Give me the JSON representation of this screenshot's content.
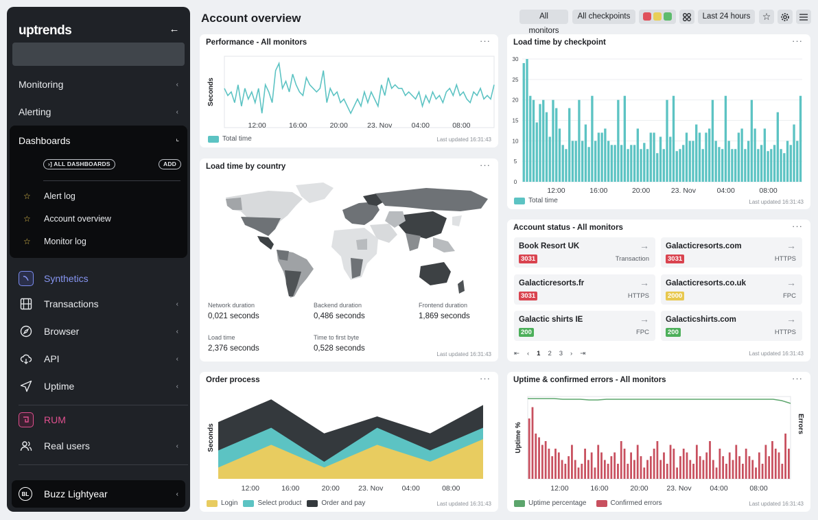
{
  "sidebar": {
    "logo": "uptrends",
    "search_placeholder": "",
    "top_items": [
      {
        "label": "Monitoring"
      },
      {
        "label": "Alerting"
      }
    ],
    "dashboards": {
      "title": "Dashboards",
      "all_dashboards": "›] ALL DASHBOARDS",
      "add": "ADD",
      "favorites": [
        "Alert log",
        "Account overview",
        "Monitor log"
      ]
    },
    "synthetics": {
      "label": "Synthetics",
      "color": "#7b8cf0",
      "items": [
        {
          "label": "Transactions",
          "icon": "film-icon"
        },
        {
          "label": "Browser",
          "icon": "compass-icon"
        },
        {
          "label": "API",
          "icon": "cloud-icon"
        },
        {
          "label": "Uptime",
          "icon": "send-icon"
        }
      ]
    },
    "rum": {
      "label": "RUM",
      "color": "#e0508f",
      "items": [
        {
          "label": "Real users",
          "icon": "users-icon"
        }
      ]
    },
    "user": {
      "initials": "BL",
      "name": "Buzz Lightyear"
    }
  },
  "header": {
    "title": "Account overview",
    "all_monitors": "All monitors",
    "all_checkpoints": "All checkpoints",
    "status_colors": [
      "#e0525c",
      "#e8cf58",
      "#5dbb6c"
    ],
    "time_range": "Last 24 hours"
  },
  "panels": {
    "performance": {
      "title": "Performance - All monitors",
      "updated": "Last updated 16:31:43",
      "legend": [
        "Total time"
      ]
    },
    "checkpoint": {
      "title": "Load time by checkpoint",
      "updated": "Last updated 16:31:43",
      "legend": [
        "Total time"
      ]
    },
    "country": {
      "title": "Load time by country",
      "updated": "Last updated 16:31:43",
      "metrics": [
        {
          "label": "Network duration",
          "value": "0,021 seconds"
        },
        {
          "label": "Backend duration",
          "value": "0,486 seconds"
        },
        {
          "label": "Frontend duration",
          "value": "1,869 seconds"
        },
        {
          "label": "Load time",
          "value": "2,376 seconds"
        },
        {
          "label": "Time to first byte",
          "value": "0,528 seconds"
        }
      ]
    },
    "account": {
      "title": "Account status - All monitors",
      "updated": "Last updated 16:31:43",
      "cards": [
        {
          "name": "Book Resort UK",
          "code": "3031",
          "type": "Transaction",
          "color": "#d9434f"
        },
        {
          "name": "Galacticresorts.com",
          "code": "3031",
          "type": "HTTPS",
          "color": "#d9434f"
        },
        {
          "name": "Galacticresorts.fr",
          "code": "3031",
          "type": "HTTPS",
          "color": "#d9434f"
        },
        {
          "name": "Galacticresorts.co.uk",
          "code": "2000",
          "type": "FPC",
          "color": "#e8c84f"
        },
        {
          "name": "Galactic shirts IE",
          "code": "200",
          "type": "FPC",
          "color": "#4caf5a"
        },
        {
          "name": "Galacticshirts.com",
          "code": "200",
          "type": "HTTPS",
          "color": "#4caf5a"
        }
      ],
      "pager": [
        "⇤",
        "‹",
        "1",
        "2",
        "3",
        "›",
        "⇥"
      ]
    },
    "order": {
      "title": "Order process",
      "updated": "Last updated 16:31:43",
      "legend": [
        "Login",
        "Select product",
        "Order and pay"
      ]
    },
    "uptime": {
      "title": "Uptime & confirmed errors - All monitors",
      "updated": "Last updated 16:31:43",
      "legend": [
        "Uptime percentage",
        "Confirmed errors"
      ]
    }
  },
  "chart_data": [
    {
      "id": "performance",
      "type": "line",
      "title": "Performance - All monitors",
      "ylabel": "Seconds",
      "x_ticks": [
        "12:00",
        "16:00",
        "20:00",
        "23. Nov",
        "04:00",
        "08:00"
      ],
      "series": [
        {
          "name": "Total time",
          "color": "#5cc3c3",
          "values": [
            0.55,
            0.45,
            0.5,
            0.35,
            0.6,
            0.3,
            0.55,
            0.4,
            0.5,
            0.35,
            0.55,
            0.2,
            0.6,
            0.5,
            0.35,
            0.8,
            0.9,
            0.55,
            0.65,
            0.5,
            0.75,
            0.6,
            0.5,
            0.45,
            0.7,
            0.6,
            0.55,
            0.5,
            0.55,
            0.8,
            0.35,
            0.55,
            0.45,
            0.5,
            0.35,
            0.4,
            0.3,
            0.2,
            0.3,
            0.4,
            0.3,
            0.5,
            0.35,
            0.5,
            0.4,
            0.3,
            0.6,
            0.45,
            0.7,
            0.55,
            0.6,
            0.55,
            0.55,
            0.45,
            0.5,
            0.45,
            0.4,
            0.5,
            0.3,
            0.45,
            0.35,
            0.5,
            0.4,
            0.45,
            0.35,
            0.5,
            0.55,
            0.45,
            0.6,
            0.45,
            0.5,
            0.4,
            0.35,
            0.5,
            0.45,
            0.55,
            0.4,
            0.45,
            0.4,
            0.6
          ]
        }
      ]
    },
    {
      "id": "checkpoint",
      "type": "bar",
      "title": "Load time by checkpoint",
      "ylim": [
        0,
        30
      ],
      "y_ticks": [
        0,
        5,
        10,
        15,
        20,
        25,
        30
      ],
      "x_ticks": [
        "12:00",
        "16:00",
        "20:00",
        "23. Nov",
        "04:00",
        "08:00"
      ],
      "series": [
        {
          "name": "Total time",
          "color": "#5cc3c3",
          "values": [
            29,
            30,
            21,
            20,
            14.5,
            19,
            20,
            17,
            11,
            20,
            18,
            13,
            9,
            8,
            18,
            10,
            10,
            20,
            10,
            14,
            8.5,
            21,
            10,
            12,
            12,
            13,
            10,
            9,
            9,
            20,
            9,
            21,
            8,
            9,
            9,
            13,
            8,
            9.5,
            8,
            12,
            12,
            7,
            11,
            8,
            20,
            11,
            21,
            7.5,
            8,
            9,
            12,
            10,
            10,
            14,
            12,
            8,
            12,
            13,
            20,
            10,
            8.5,
            8,
            21,
            10,
            8,
            8,
            12,
            13,
            8,
            10,
            20,
            13,
            8,
            9,
            13,
            7.5,
            8,
            9,
            17,
            8,
            7,
            10,
            9,
            14,
            10,
            21
          ]
        }
      ]
    },
    {
      "id": "order",
      "type": "area",
      "title": "Order process",
      "ylabel": "Seconds",
      "x_ticks": [
        "12:00",
        "16:00",
        "20:00",
        "23. Nov",
        "04:00",
        "08:00"
      ],
      "series": [
        {
          "name": "Login",
          "color": "#e8cc60",
          "values": [
            0.2,
            0.6,
            0.2,
            0.6,
            0.3,
            0.7
          ]
        },
        {
          "name": "Select product",
          "color": "#5cc3c3",
          "values": [
            0.5,
            0.9,
            0.3,
            0.9,
            0.5,
            0.9
          ]
        },
        {
          "name": "Order and pay",
          "color": "#34393d",
          "values": [
            1.0,
            1.4,
            0.8,
            1.1,
            0.8,
            1.3
          ]
        }
      ]
    },
    {
      "id": "uptime",
      "type": "bar",
      "title": "Uptime & confirmed errors - All monitors",
      "ylabel": "Uptime %",
      "y2label": "Errors",
      "x_ticks": [
        "12:00",
        "16:00",
        "20:00",
        "23. Nov",
        "04:00",
        "08:00"
      ],
      "series": [
        {
          "name": "Uptime percentage",
          "type": "line",
          "color": "#5ca56c",
          "values": [
            99.9,
            99.9,
            99.9,
            99.9,
            99.8,
            99.8,
            99.8,
            99.7,
            99.7,
            99.8,
            99.8,
            99.8,
            99.8,
            99.8,
            99.8,
            99.8,
            99.8,
            99.8,
            99.8,
            99.8,
            99.8,
            99.8,
            99.8,
            99.8,
            99.8,
            99.8,
            99.8,
            99.8,
            99.8,
            99.6,
            99.2
          ]
        },
        {
          "name": "Confirmed errors",
          "type": "bar",
          "color": "#c8505f",
          "values": [
            0.8,
            0.95,
            0.6,
            0.55,
            0.45,
            0.5,
            0.4,
            0.3,
            0.4,
            0.35,
            0.25,
            0.2,
            0.3,
            0.45,
            0.25,
            0.15,
            0.2,
            0.4,
            0.25,
            0.35,
            0.15,
            0.45,
            0.35,
            0.25,
            0.2,
            0.3,
            0.35,
            0.2,
            0.5,
            0.4,
            0.2,
            0.35,
            0.25,
            0.45,
            0.3,
            0.15,
            0.25,
            0.3,
            0.4,
            0.5,
            0.25,
            0.35,
            0.2,
            0.45,
            0.4,
            0.15,
            0.3,
            0.4,
            0.35,
            0.25,
            0.2,
            0.45,
            0.3,
            0.25,
            0.35,
            0.5,
            0.25,
            0.15,
            0.4,
            0.3,
            0.2,
            0.35,
            0.25,
            0.45,
            0.3,
            0.2,
            0.4,
            0.3,
            0.25,
            0.15,
            0.35,
            0.2,
            0.45,
            0.3,
            0.5,
            0.4,
            0.35,
            0.2,
            0.6,
            0.4
          ]
        }
      ]
    }
  ]
}
